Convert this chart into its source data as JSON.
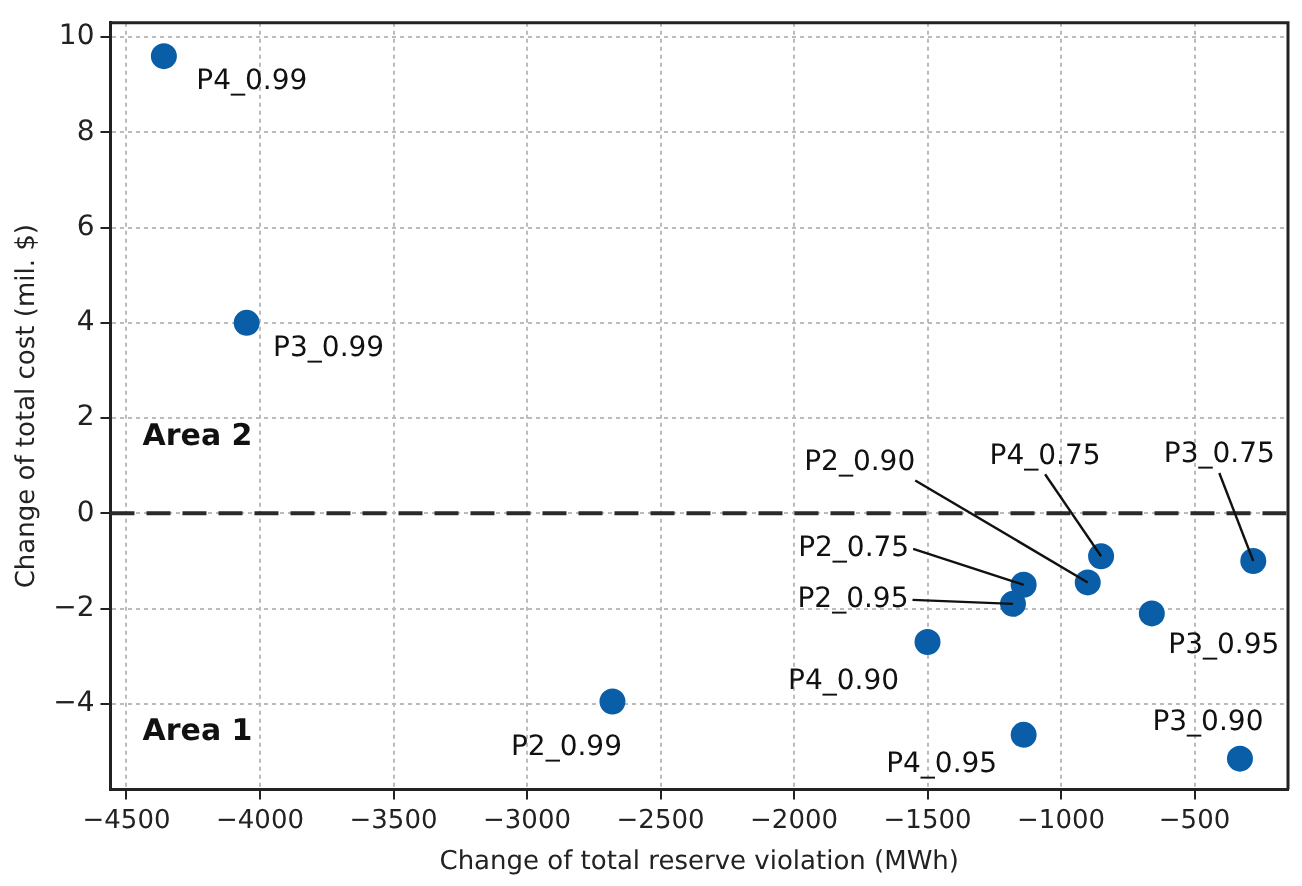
{
  "chart_data": {
    "type": "scatter",
    "xlabel": "Change of total reserve violation (MWh)",
    "ylabel": "Change of total cost (mil. $)",
    "x": [
      -4360,
      -4050,
      -2680,
      -850,
      -900,
      -1140,
      -1180,
      -280,
      -660,
      -1500,
      -1140,
      -330
    ],
    "series": [
      {
        "color": "#0a5ea8",
        "values": [
          9.6,
          4.0,
          -3.95,
          -0.9,
          -1.45,
          -1.5,
          -1.9,
          -1.0,
          -2.1,
          -2.7,
          -4.65,
          -5.15
        ]
      }
    ],
    "xlim": [
      -4560,
      -150
    ],
    "ylim": [
      -5.8,
      10.3
    ],
    "xticks": [
      -4500,
      -4000,
      -3500,
      -3000,
      -2500,
      -2000,
      -1500,
      -1000,
      -500
    ],
    "yticks": [
      -4,
      -2,
      0,
      2,
      4,
      6,
      8,
      10
    ],
    "grid": true,
    "marker": "circle",
    "legend": false,
    "ref_lines": [
      {
        "axis": "y",
        "value": 0,
        "color": "#2a2a2a",
        "line_style": "dashed"
      }
    ],
    "annotations": [
      {
        "text": "P4_0.99",
        "x": -4360,
        "y": 9.6
      },
      {
        "text": "P3_0.99",
        "x": -4050,
        "y": 4.0
      },
      {
        "text": "P2_0.99",
        "x": -2680,
        "y": -3.95
      },
      {
        "text": "P4_0.75",
        "x": -850,
        "y": -0.9
      },
      {
        "text": "P2_0.90",
        "x": -900,
        "y": -1.45
      },
      {
        "text": "P2_0.75",
        "x": -1140,
        "y": -1.5
      },
      {
        "text": "P2_0.95",
        "x": -1180,
        "y": -1.9
      },
      {
        "text": "P3_0.75",
        "x": -280,
        "y": -1.0
      },
      {
        "text": "P3_0.95",
        "x": -660,
        "y": -2.1
      },
      {
        "text": "P4_0.90",
        "x": -1500,
        "y": -2.7
      },
      {
        "text": "P4_0.95",
        "x": -1140,
        "y": -4.65
      },
      {
        "text": "P3_0.90",
        "x": -330,
        "y": -5.15
      },
      "Area 2",
      "Area 1"
    ]
  }
}
